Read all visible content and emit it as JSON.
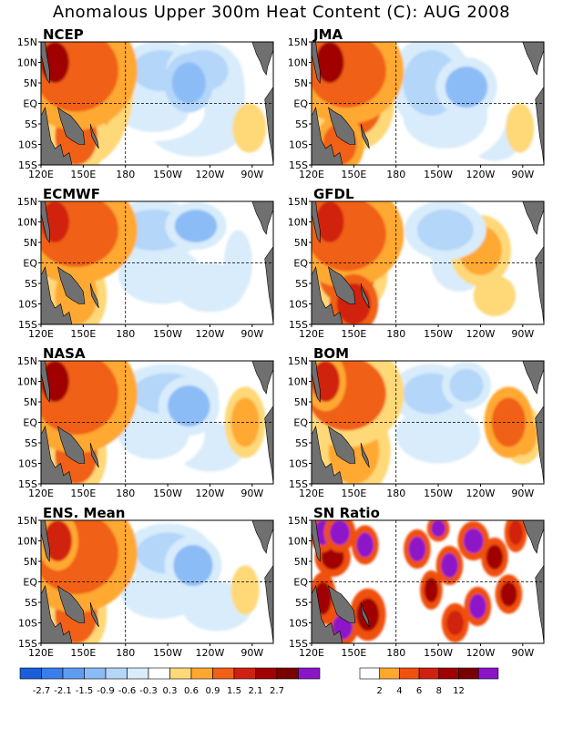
{
  "title": "Anomalous Upper 300m Heat Content (C): AUG 2008",
  "chart_data": [
    {
      "type": "heatmap",
      "title": "NCEP",
      "x_ticks": [
        "120E",
        "150E",
        "180",
        "150W",
        "120W",
        "90W"
      ],
      "y_ticks": [
        "15N",
        "10N",
        "5N",
        "EQ",
        "5S",
        "10S",
        "15S"
      ],
      "blobs": [
        {
          "lon": 130,
          "lat": 10,
          "value": 2.1,
          "rlon": 10,
          "rlat": 5
        },
        {
          "lon": 145,
          "lat": 8,
          "value": 1.2,
          "rlon": 30,
          "rlat": 10
        },
        {
          "lon": 145,
          "lat": -8,
          "value": 0.9,
          "rlon": 15,
          "rlat": 7
        },
        {
          "lon": 150,
          "lat": 5,
          "value": 0.8,
          "rlon": 25,
          "rlat": 14
        },
        {
          "lon": 205,
          "lat": 8,
          "value": -0.9,
          "rlon": 20,
          "rlat": 5
        },
        {
          "lon": 225,
          "lat": 5,
          "value": -1.5,
          "rlon": 12,
          "rlat": 5
        },
        {
          "lon": 235,
          "lat": 8,
          "value": -0.9,
          "rlon": 18,
          "rlat": 5
        },
        {
          "lon": 200,
          "lat": -2,
          "value": -0.6,
          "rlon": 25,
          "rlat": 5
        },
        {
          "lon": 230,
          "lat": -5,
          "value": -0.5,
          "rlon": 35,
          "rlat": 8
        },
        {
          "lon": 255,
          "lat": 2,
          "value": -0.4,
          "rlon": 10,
          "rlat": 10
        },
        {
          "lon": 268,
          "lat": -6,
          "value": 0.5,
          "rlon": 12,
          "rlat": 6
        }
      ]
    },
    {
      "type": "heatmap",
      "title": "JMA",
      "x_ticks": [
        "120E",
        "150E",
        "180",
        "150W",
        "120W",
        "90W"
      ],
      "y_ticks": [
        "15N",
        "10N",
        "5N",
        "EQ",
        "5S",
        "10S",
        "15S"
      ],
      "blobs": [
        {
          "lon": 133,
          "lat": 10,
          "value": 2.1,
          "rlon": 10,
          "rlat": 5
        },
        {
          "lon": 145,
          "lat": 8,
          "value": 1.2,
          "rlon": 28,
          "rlat": 9
        },
        {
          "lon": 150,
          "lat": 0,
          "value": 0.9,
          "rlon": 20,
          "rlat": 8
        },
        {
          "lon": 140,
          "lat": -10,
          "value": 1.2,
          "rlon": 12,
          "rlat": 5
        },
        {
          "lon": 205,
          "lat": 5,
          "value": -0.8,
          "rlon": 20,
          "rlat": 8
        },
        {
          "lon": 230,
          "lat": 4,
          "value": -1.0,
          "rlon": 15,
          "rlat": 5
        },
        {
          "lon": 215,
          "lat": -3,
          "value": -0.6,
          "rlon": 30,
          "rlat": 8
        },
        {
          "lon": 250,
          "lat": -8,
          "value": -0.5,
          "rlon": 20,
          "rlat": 6
        },
        {
          "lon": 268,
          "lat": -6,
          "value": 0.5,
          "rlon": 10,
          "rlat": 6
        }
      ]
    },
    {
      "type": "heatmap",
      "title": "ECMWF",
      "x_ticks": [
        "120E",
        "150E",
        "180",
        "150W",
        "120W",
        "90W"
      ],
      "y_ticks": [
        "15N",
        "10N",
        "5N",
        "EQ",
        "5S",
        "10S",
        "15S"
      ],
      "blobs": [
        {
          "lon": 130,
          "lat": 10,
          "value": 1.8,
          "rlon": 10,
          "rlat": 5
        },
        {
          "lon": 145,
          "lat": 8,
          "value": 1.1,
          "rlon": 30,
          "rlat": 9
        },
        {
          "lon": 145,
          "lat": -8,
          "value": 0.8,
          "rlon": 15,
          "rlat": 7
        },
        {
          "lon": 200,
          "lat": 8,
          "value": -0.9,
          "rlon": 25,
          "rlat": 5
        },
        {
          "lon": 230,
          "lat": 9,
          "value": -1.0,
          "rlon": 15,
          "rlat": 4
        },
        {
          "lon": 205,
          "lat": -3,
          "value": -0.5,
          "rlon": 30,
          "rlat": 7
        },
        {
          "lon": 240,
          "lat": -6,
          "value": -0.4,
          "rlon": 25,
          "rlat": 6
        },
        {
          "lon": 260,
          "lat": 0,
          "value": -0.4,
          "rlon": 10,
          "rlat": 8
        }
      ]
    },
    {
      "type": "heatmap",
      "title": "GFDL",
      "x_ticks": [
        "120E",
        "150E",
        "180",
        "150W",
        "120W",
        "90W"
      ],
      "y_ticks": [
        "15N",
        "10N",
        "5N",
        "EQ",
        "5S",
        "10S",
        "15S"
      ],
      "blobs": [
        {
          "lon": 133,
          "lat": 10,
          "value": 2.0,
          "rlon": 10,
          "rlat": 5
        },
        {
          "lon": 145,
          "lat": 7,
          "value": 1.1,
          "rlon": 28,
          "rlat": 9
        },
        {
          "lon": 150,
          "lat": -10,
          "value": 1.8,
          "rlon": 12,
          "rlat": 5
        },
        {
          "lon": 145,
          "lat": -3,
          "value": 0.9,
          "rlon": 20,
          "rlat": 7
        },
        {
          "lon": 215,
          "lat": 8,
          "value": -0.9,
          "rlon": 20,
          "rlat": 5
        },
        {
          "lon": 225,
          "lat": 0,
          "value": -0.4,
          "rlon": 20,
          "rlat": 7
        },
        {
          "lon": 240,
          "lat": 3,
          "value": 0.6,
          "rlon": 15,
          "rlat": 6
        },
        {
          "lon": 250,
          "lat": -8,
          "value": 0.5,
          "rlon": 15,
          "rlat": 5
        }
      ]
    },
    {
      "type": "heatmap",
      "title": "NASA",
      "x_ticks": [
        "120E",
        "150E",
        "180",
        "150W",
        "120W",
        "90W"
      ],
      "y_ticks": [
        "15N",
        "10N",
        "5N",
        "EQ",
        "5S",
        "10S",
        "15S"
      ],
      "blobs": [
        {
          "lon": 130,
          "lat": 10,
          "value": 2.1,
          "rlon": 10,
          "rlat": 5
        },
        {
          "lon": 145,
          "lat": 7,
          "value": 1.2,
          "rlon": 30,
          "rlat": 10
        },
        {
          "lon": 145,
          "lat": -8,
          "value": 1.0,
          "rlon": 15,
          "rlat": 7
        },
        {
          "lon": 210,
          "lat": 7,
          "value": -0.9,
          "rlon": 25,
          "rlat": 5
        },
        {
          "lon": 225,
          "lat": 4,
          "value": -1.2,
          "rlon": 15,
          "rlat": 5
        },
        {
          "lon": 200,
          "lat": -3,
          "value": -0.6,
          "rlon": 25,
          "rlat": 6
        },
        {
          "lon": 240,
          "lat": -6,
          "value": -0.5,
          "rlon": 25,
          "rlat": 6
        },
        {
          "lon": 265,
          "lat": 0,
          "value": 0.6,
          "rlon": 10,
          "rlat": 6
        }
      ]
    },
    {
      "type": "heatmap",
      "title": "BOM",
      "x_ticks": [
        "120E",
        "150E",
        "180",
        "150W",
        "120W",
        "90W"
      ],
      "y_ticks": [
        "15N",
        "10N",
        "5N",
        "EQ",
        "5S",
        "10S",
        "15S"
      ],
      "blobs": [
        {
          "lon": 130,
          "lat": 10,
          "value": 1.6,
          "rlon": 10,
          "rlat": 5
        },
        {
          "lon": 145,
          "lat": 7,
          "value": 1.0,
          "rlon": 28,
          "rlat": 9
        },
        {
          "lon": 150,
          "lat": -7,
          "value": 0.8,
          "rlon": 18,
          "rlat": 8
        },
        {
          "lon": 205,
          "lat": 7,
          "value": -0.9,
          "rlon": 20,
          "rlat": 5
        },
        {
          "lon": 230,
          "lat": 9,
          "value": -0.9,
          "rlon": 12,
          "rlat": 4
        },
        {
          "lon": 210,
          "lat": -3,
          "value": -0.5,
          "rlon": 30,
          "rlat": 7
        },
        {
          "lon": 260,
          "lat": 0,
          "value": 1.3,
          "rlon": 12,
          "rlat": 6
        },
        {
          "lon": 270,
          "lat": -3,
          "value": 0.8,
          "rlon": 10,
          "rlat": 5
        }
      ]
    },
    {
      "type": "heatmap",
      "title": "ENS. Mean",
      "x_ticks": [
        "120E",
        "150E",
        "180",
        "150W",
        "120W",
        "90W"
      ],
      "y_ticks": [
        "15N",
        "10N",
        "5N",
        "EQ",
        "5S",
        "10S",
        "15S"
      ],
      "blobs": [
        {
          "lon": 132,
          "lat": 10,
          "value": 1.6,
          "rlon": 10,
          "rlat": 5
        },
        {
          "lon": 145,
          "lat": 7,
          "value": 1.1,
          "rlon": 30,
          "rlat": 10
        },
        {
          "lon": 145,
          "lat": -8,
          "value": 0.9,
          "rlon": 15,
          "rlat": 7
        },
        {
          "lon": 210,
          "lat": 7,
          "value": -0.9,
          "rlon": 22,
          "rlat": 5
        },
        {
          "lon": 228,
          "lat": 4,
          "value": -1.1,
          "rlon": 14,
          "rlat": 5
        },
        {
          "lon": 205,
          "lat": -3,
          "value": -0.5,
          "rlon": 28,
          "rlat": 6
        },
        {
          "lon": 245,
          "lat": -6,
          "value": -0.4,
          "rlon": 25,
          "rlat": 6
        },
        {
          "lon": 265,
          "lat": -2,
          "value": 0.5,
          "rlon": 10,
          "rlat": 6
        }
      ]
    },
    {
      "type": "heatmap",
      "title": "SN Ratio",
      "x_ticks": [
        "120E",
        "150E",
        "180",
        "150W",
        "120W",
        "90W"
      ],
      "y_ticks": [
        "15N",
        "10N",
        "5N",
        "EQ",
        "5S",
        "10S",
        "15S"
      ],
      "blobs": [
        {
          "lon": 128,
          "lat": 12,
          "value": 12,
          "rlon": 6,
          "rlat": 3
        },
        {
          "lon": 140,
          "lat": 12,
          "value": 12,
          "rlon": 7,
          "rlat": 3
        },
        {
          "lon": 135,
          "lat": 6,
          "value": 8,
          "rlon": 8,
          "rlat": 3
        },
        {
          "lon": 158,
          "lat": 9,
          "value": 12,
          "rlon": 6,
          "rlat": 3
        },
        {
          "lon": 128,
          "lat": -4,
          "value": 8,
          "rlon": 6,
          "rlat": 4
        },
        {
          "lon": 142,
          "lat": -11,
          "value": 12,
          "rlon": 7,
          "rlat": 3
        },
        {
          "lon": 160,
          "lat": -8,
          "value": 8,
          "rlon": 8,
          "rlat": 4
        },
        {
          "lon": 195,
          "lat": 8,
          "value": 12,
          "rlon": 6,
          "rlat": 3
        },
        {
          "lon": 210,
          "lat": 13,
          "value": 12,
          "rlon": 5,
          "rlat": 2
        },
        {
          "lon": 218,
          "lat": 4,
          "value": 12,
          "rlon": 6,
          "rlat": 3
        },
        {
          "lon": 205,
          "lat": -2,
          "value": 8,
          "rlon": 5,
          "rlat": 3
        },
        {
          "lon": 235,
          "lat": 10,
          "value": 12,
          "rlon": 7,
          "rlat": 3
        },
        {
          "lon": 250,
          "lat": 6,
          "value": 8,
          "rlon": 6,
          "rlat": 3
        },
        {
          "lon": 238,
          "lat": -6,
          "value": 12,
          "rlon": 6,
          "rlat": 3
        },
        {
          "lon": 260,
          "lat": -3,
          "value": 8,
          "rlon": 6,
          "rlat": 3
        },
        {
          "lon": 222,
          "lat": -10,
          "value": 6,
          "rlon": 6,
          "rlat": 3
        },
        {
          "lon": 265,
          "lat": 12,
          "value": 6,
          "rlon": 5,
          "rlat": 3
        }
      ]
    }
  ],
  "colorbar_anomaly": {
    "labels": [
      "-2.7",
      "-2.1",
      "-1.5",
      "-0.9",
      "-0.6",
      "-0.3",
      "0.3",
      "0.6",
      "0.9",
      "1.5",
      "2.1",
      "2.7"
    ],
    "colors": [
      "#1a5ed8",
      "#3a7eea",
      "#5e9cf2",
      "#8cbcf6",
      "#b4d6f9",
      "#d8ecfb",
      "#ffffff",
      "#ffd878",
      "#ffa830",
      "#f06018",
      "#d02010",
      "#a00000",
      "#7a0000",
      "#8c14c8"
    ]
  },
  "colorbar_sn": {
    "labels": [
      "2",
      "4",
      "6",
      "8",
      "12"
    ],
    "colors": [
      "#ffffff",
      "#ffa830",
      "#f05010",
      "#d02010",
      "#a00000",
      "#7a0000",
      "#8c14c8"
    ]
  },
  "land_color": "#707070"
}
